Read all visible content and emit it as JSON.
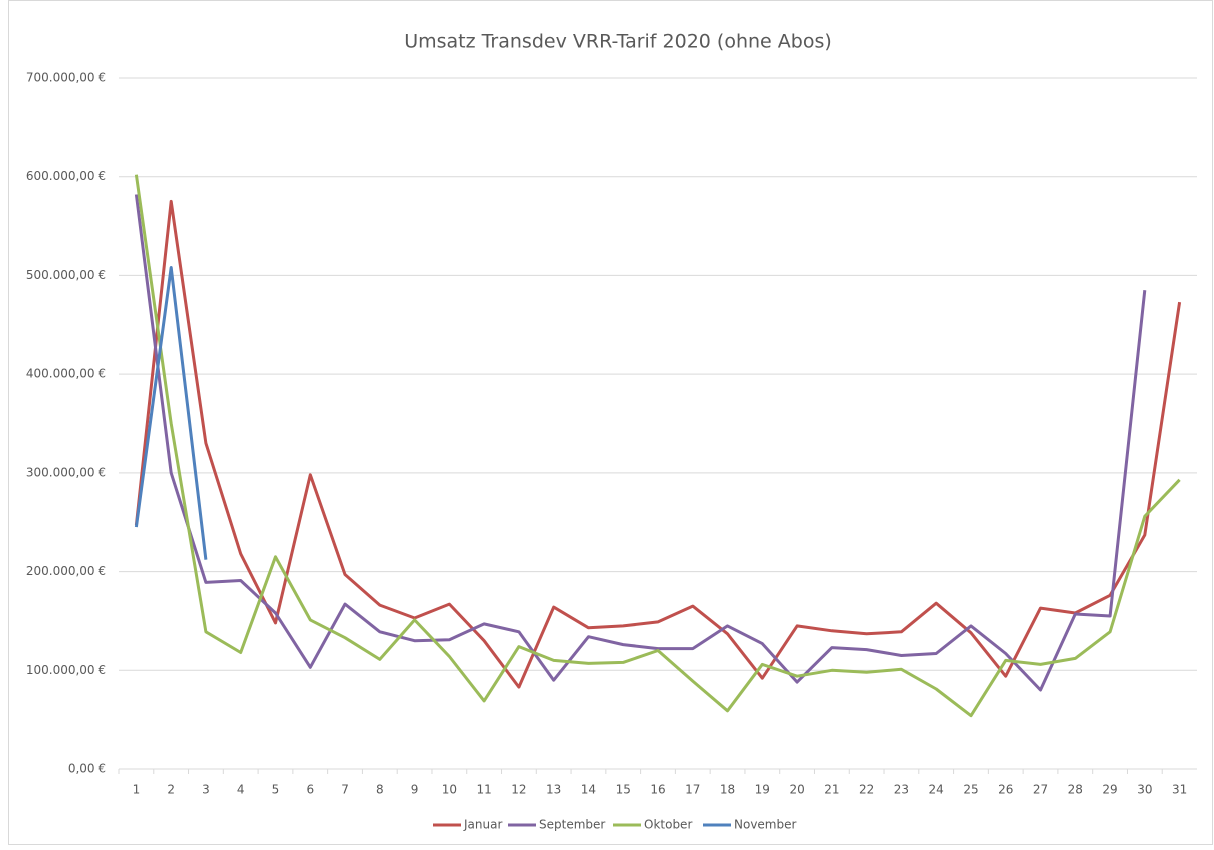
{
  "chart_data": {
    "type": "line",
    "title": "Umsatz Transdev VRR-Tarif 2020 (ohne Abos)",
    "categories": [
      1,
      2,
      3,
      4,
      5,
      6,
      7,
      8,
      9,
      10,
      11,
      12,
      13,
      14,
      15,
      16,
      17,
      18,
      19,
      20,
      21,
      22,
      23,
      24,
      25,
      26,
      27,
      28,
      29,
      30,
      31
    ],
    "series": [
      {
        "name": "Januar",
        "color": "#c0504d",
        "values": [
          247000,
          575000,
          330000,
          218000,
          148000,
          298000,
          197000,
          166000,
          153000,
          167000,
          130000,
          83000,
          164000,
          143000,
          145000,
          149000,
          165000,
          137000,
          92000,
          145000,
          140000,
          137000,
          139000,
          168000,
          138000,
          94000,
          163000,
          158000,
          176000,
          237000,
          473000
        ]
      },
      {
        "name": "September",
        "color": "#8064a2",
        "values": [
          582000,
          300000,
          189000,
          191000,
          158000,
          103000,
          167000,
          139000,
          130000,
          131000,
          147000,
          139000,
          90000,
          134000,
          126000,
          122000,
          122000,
          145000,
          127000,
          88000,
          123000,
          121000,
          115000,
          117000,
          145000,
          117000,
          80000,
          157000,
          155000,
          485000,
          null
        ]
      },
      {
        "name": "Oktober",
        "color": "#9bbb59",
        "values": [
          602000,
          350000,
          139000,
          118000,
          215000,
          151000,
          133000,
          111000,
          151000,
          114000,
          69000,
          124000,
          110000,
          107000,
          108000,
          120000,
          89000,
          59000,
          106000,
          94000,
          100000,
          98000,
          101000,
          81000,
          54000,
          110000,
          106000,
          112000,
          139000,
          256000,
          293000
        ]
      },
      {
        "name": "November",
        "color": "#4f81bd",
        "values": [
          245000,
          508000,
          212000,
          null,
          null,
          null,
          null,
          null,
          null,
          null,
          null,
          null,
          null,
          null,
          null,
          null,
          null,
          null,
          null,
          null,
          null,
          null,
          null,
          null,
          null,
          null,
          null,
          null,
          null,
          null,
          null
        ]
      }
    ],
    "ylim": [
      0,
      700000
    ],
    "yticks": [
      {
        "value": 0,
        "label": "0,00 €"
      },
      {
        "value": 100000,
        "label": "100.000,00 €"
      },
      {
        "value": 200000,
        "label": "200.000,00 €"
      },
      {
        "value": 300000,
        "label": "300.000,00 €"
      },
      {
        "value": 400000,
        "label": "400.000,00 €"
      },
      {
        "value": 500000,
        "label": "500.000,00 €"
      },
      {
        "value": 600000,
        "label": "600.000,00 €"
      },
      {
        "value": 700000,
        "label": "700.000,00 €"
      }
    ],
    "grid": true,
    "legend": "bottom"
  }
}
